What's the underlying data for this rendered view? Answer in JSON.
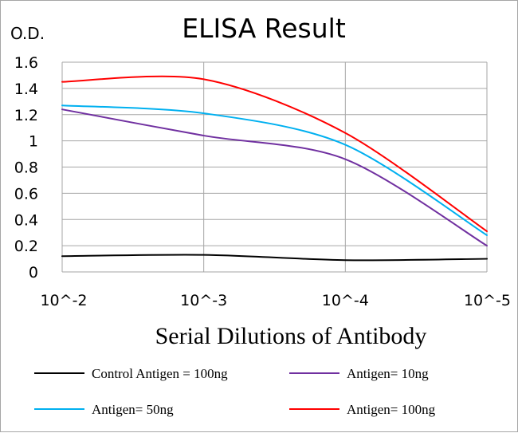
{
  "chart_data": {
    "type": "line",
    "title": "ELISA Result",
    "ylabel": "O.D.",
    "xlabel": "Serial Dilutions of Antibody",
    "x": [
      "10^-2",
      "10^-3",
      "10^-4",
      "10^-5"
    ],
    "ylim": [
      0,
      1.6
    ],
    "yticks": [
      "0",
      "0.2",
      "0.4",
      "0.6",
      "0.8",
      "1",
      "1.2",
      "1.4",
      "1.6"
    ],
    "grid": true,
    "legend_position": "bottom",
    "series": [
      {
        "name": "Control Antigen = 100ng",
        "color": "#000000",
        "values": [
          0.12,
          0.13,
          0.09,
          0.1
        ]
      },
      {
        "name": "Antigen= 10ng",
        "color": "#7030a0",
        "values": [
          1.24,
          1.04,
          0.86,
          0.2
        ]
      },
      {
        "name": "Antigen= 50ng",
        "color": "#00b0f0",
        "values": [
          1.27,
          1.21,
          0.97,
          0.28
        ]
      },
      {
        "name": "Antigen= 100ng",
        "color": "#ff0000",
        "values": [
          1.45,
          1.47,
          1.06,
          0.31
        ]
      }
    ]
  }
}
